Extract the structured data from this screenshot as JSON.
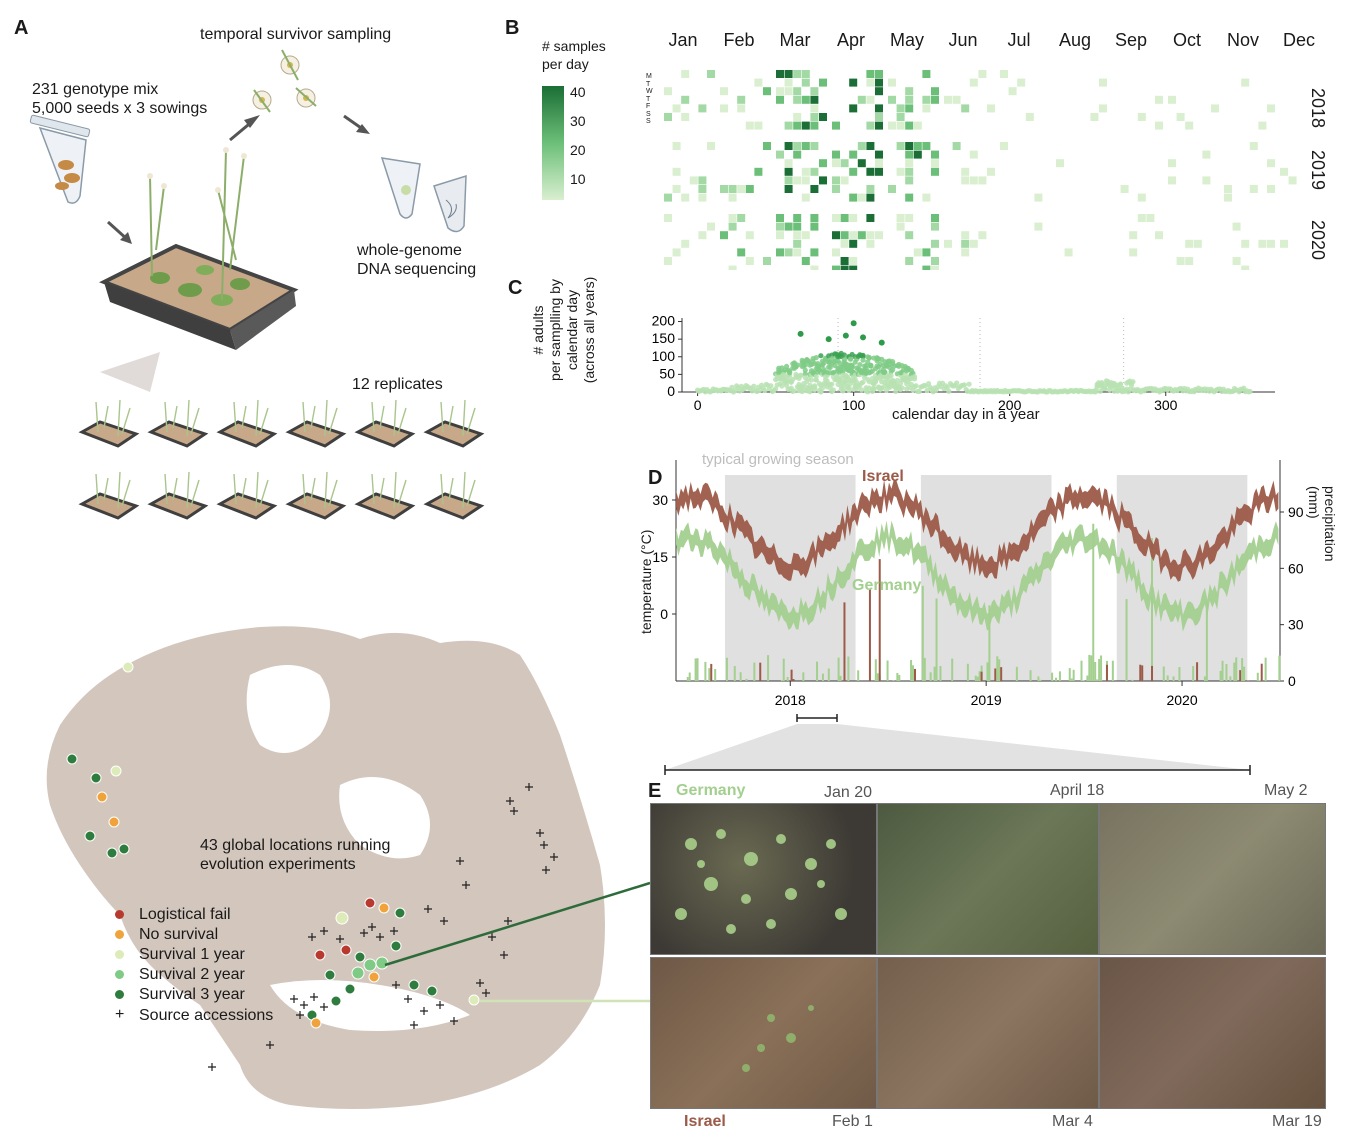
{
  "panelA": {
    "letter": "A",
    "sampling_label": "temporal survivor sampling",
    "mix_line1": "231 genotype mix",
    "mix_line2": "5,000 seeds x 3 sowings",
    "seq_line1": "whole-genome",
    "seq_line2": "DNA sequencing",
    "replicates": "12 replicates",
    "globe_line1": "43 global locations running",
    "globe_line2": "evolution experiments",
    "legend": [
      {
        "label": "Logistical fail",
        "color": "#b83a2e",
        "kind": "dot"
      },
      {
        "label": "No survival",
        "color": "#f0a33a",
        "kind": "dot"
      },
      {
        "label": "Survival 1 year",
        "color": "#dcebb8",
        "kind": "dot"
      },
      {
        "label": "Survival 2 year",
        "color": "#7fcb86",
        "kind": "dot"
      },
      {
        "label": "Survival 3 year",
        "color": "#2e7d3e",
        "kind": "dot"
      },
      {
        "label": "Source accessions",
        "color": "#222222",
        "kind": "cross"
      }
    ]
  },
  "panelB": {
    "letter": "B",
    "legend_title_line1": "# samples",
    "legend_title_line2": "per day",
    "legend_ticks": [
      "40",
      "30",
      "20",
      "10"
    ],
    "months": [
      "Jan",
      "Feb",
      "Mar",
      "Apr",
      "May",
      "Jun",
      "Jul",
      "Aug",
      "Sep",
      "Oct",
      "Nov",
      "Dec"
    ],
    "weekday_letters": [
      "M",
      "T",
      "W",
      "T",
      "F",
      "S",
      "S"
    ],
    "years": [
      "2018",
      "2019",
      "2020"
    ]
  },
  "panelC": {
    "letter": "C",
    "ylabel_line1": "# adults",
    "ylabel_line2": "per samplling by",
    "ylabel_line3": "calendar day",
    "ylabel_line4": "(across all years)",
    "xlabel": "calendar day in a year"
  },
  "panelD": {
    "letter": "D",
    "season_label": "typical growing season",
    "israel_label": "Israel",
    "germany_label": "Germany",
    "ylabel_left": "temperature (°C)",
    "ylabel_right": "precipitation (mm)"
  },
  "panelE": {
    "letter": "E",
    "germany_label": "Germany",
    "israel_label": "Israel",
    "germany_dates": [
      "Jan 20",
      "April 18",
      "May 2"
    ],
    "israel_dates": [
      "Feb 1",
      "Mar 4",
      "Mar 19"
    ]
  },
  "colors": {
    "israel": "#9c5a48",
    "germany": "#a3cf8f",
    "season": "#e0e0e0",
    "green_dark": "#1b6e35",
    "green_light": "#cfe9c6",
    "land": "#d3c6bd"
  },
  "chart_data": [
    {
      "type": "heatmap",
      "title": "",
      "x": [
        "Jan",
        "Feb",
        "Mar",
        "Apr",
        "May",
        "Jun",
        "Jul",
        "Aug",
        "Sep",
        "Oct",
        "Nov",
        "Dec"
      ],
      "y": [
        "2018",
        "2019",
        "2020"
      ],
      "colorbar_label": "# samples per day",
      "colorbar_range": [
        1,
        40
      ],
      "colorbar_ticks": [
        10,
        20,
        30,
        40
      ]
    },
    {
      "type": "scatter",
      "title": "",
      "xlabel": "calendar day in a year",
      "ylabel": "# adults per samplling by calendar day (across all years)",
      "xlim": [
        -10,
        370
      ],
      "ylim": [
        0,
        210
      ],
      "xticks": [
        0,
        100,
        200,
        300
      ],
      "yticks": [
        0,
        50,
        100,
        150,
        200
      ],
      "highlighted_points": [
        {
          "x": 100,
          "y": 195
        },
        {
          "x": 66,
          "y": 165
        },
        {
          "x": 95,
          "y": 160
        },
        {
          "x": 106,
          "y": 155
        },
        {
          "x": 84,
          "y": 150
        },
        {
          "x": 118,
          "y": 140
        }
      ]
    },
    {
      "type": "line",
      "title": "",
      "ylabel": "temperature (°C)",
      "ylabel_right": "precipitation (mm)",
      "xticks": [
        "2018",
        "2019",
        "2020"
      ],
      "yticks_left": [
        0,
        15,
        30
      ],
      "yticks_right": [
        0,
        30,
        60,
        90
      ],
      "series": [
        {
          "name": "Israel",
          "color": "#9c5a48",
          "seasonal_mean_c": 22,
          "seasonal_amplitude_c": 9,
          "min_around": "Jan",
          "max_around": "Jul"
        },
        {
          "name": "Germany",
          "color": "#a3cf8f",
          "seasonal_mean_c": 10,
          "seasonal_amplitude_c": 10,
          "min_around": "Jan",
          "max_around": "Jul"
        }
      ],
      "shaded_periods": [
        "Sep 2017 – May 2018",
        "Sep 2018 – May 2019",
        "Sep 2019 – May 2020"
      ]
    }
  ]
}
